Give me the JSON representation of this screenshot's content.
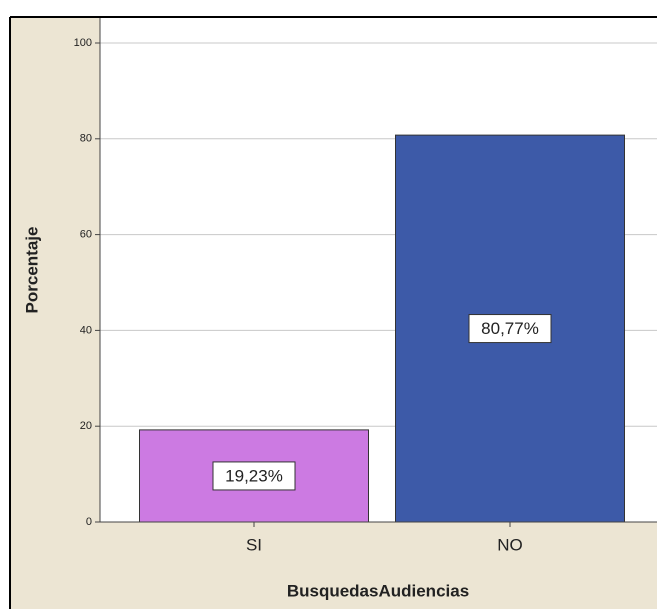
{
  "chart_data": {
    "type": "bar",
    "categories": [
      "SI",
      "NO"
    ],
    "values": [
      19.23,
      80.77
    ],
    "value_labels": [
      "19,23%",
      "80,77%"
    ],
    "colors": [
      "#cc7ae2",
      "#3d5aa8"
    ],
    "xlabel": "BusquedasAudiencias",
    "ylabel": "Porcentaje",
    "ylim": [
      0,
      100
    ],
    "yticks": [
      0,
      20,
      40,
      60,
      80,
      100
    ],
    "grid": true
  }
}
